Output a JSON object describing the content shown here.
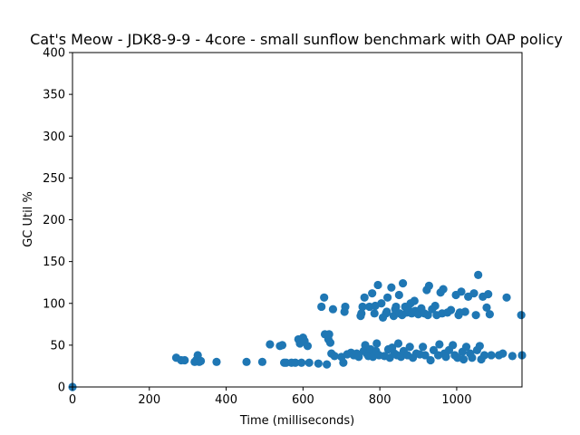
{
  "chart_data": {
    "type": "scatter",
    "title": "Cat's Meow - JDK8-9-9 - 4core -  small sunflow benchmark with OAP policy",
    "xlabel": "Time (milliseconds)",
    "ylabel": "GC Util %",
    "xlim": [
      0,
      1170
    ],
    "ylim": [
      0,
      400
    ],
    "xticks": [
      0,
      200,
      400,
      600,
      800,
      1000
    ],
    "yticks": [
      0,
      50,
      100,
      150,
      200,
      250,
      300,
      350,
      400
    ],
    "grid": false,
    "marker_color": "#1f77b4",
    "series": [
      {
        "points": [
          [
            0,
            0
          ],
          [
            270,
            35
          ],
          [
            283,
            32
          ],
          [
            292,
            32
          ],
          [
            318,
            30
          ],
          [
            322,
            32
          ],
          [
            326,
            38
          ],
          [
            330,
            30
          ],
          [
            334,
            31
          ],
          [
            375,
            30
          ],
          [
            453,
            30
          ],
          [
            494,
            30
          ],
          [
            514,
            51
          ],
          [
            540,
            49
          ],
          [
            546,
            50
          ],
          [
            551,
            29
          ],
          [
            556,
            29
          ],
          [
            570,
            29
          ],
          [
            580,
            29
          ],
          [
            588,
            57
          ],
          [
            592,
            52
          ],
          [
            596,
            29
          ],
          [
            600,
            59
          ],
          [
            604,
            55
          ],
          [
            612,
            49
          ],
          [
            616,
            29
          ],
          [
            640,
            28
          ],
          [
            648,
            96
          ],
          [
            655,
            107
          ],
          [
            657,
            63
          ],
          [
            662,
            27
          ],
          [
            666,
            57
          ],
          [
            668,
            63
          ],
          [
            671,
            53
          ],
          [
            674,
            40
          ],
          [
            678,
            93
          ],
          [
            682,
            37
          ],
          [
            700,
            36
          ],
          [
            705,
            29
          ],
          [
            708,
            90
          ],
          [
            710,
            96
          ],
          [
            715,
            39
          ],
          [
            725,
            41
          ],
          [
            732,
            38
          ],
          [
            740,
            40
          ],
          [
            745,
            36
          ],
          [
            750,
            85
          ],
          [
            752,
            88
          ],
          [
            755,
            96
          ],
          [
            758,
            43
          ],
          [
            760,
            107
          ],
          [
            762,
            50
          ],
          [
            766,
            40
          ],
          [
            770,
            37
          ],
          [
            773,
            96
          ],
          [
            776,
            45
          ],
          [
            780,
            112
          ],
          [
            782,
            36
          ],
          [
            786,
            88
          ],
          [
            788,
            97
          ],
          [
            790,
            43
          ],
          [
            792,
            52
          ],
          [
            795,
            122
          ],
          [
            798,
            38
          ],
          [
            804,
            100
          ],
          [
            808,
            83
          ],
          [
            812,
            37
          ],
          [
            816,
            88
          ],
          [
            818,
            90
          ],
          [
            820,
            107
          ],
          [
            822,
            45
          ],
          [
            826,
            35
          ],
          [
            830,
            119
          ],
          [
            832,
            47
          ],
          [
            836,
            85
          ],
          [
            838,
            40
          ],
          [
            840,
            93
          ],
          [
            842,
            96
          ],
          [
            845,
            38
          ],
          [
            848,
            52
          ],
          [
            850,
            110
          ],
          [
            852,
            88
          ],
          [
            855,
            36
          ],
          [
            858,
            86
          ],
          [
            860,
            124
          ],
          [
            862,
            43
          ],
          [
            866,
            96
          ],
          [
            870,
            89
          ],
          [
            872,
            38
          ],
          [
            875,
            92
          ],
          [
            878,
            48
          ],
          [
            880,
            100
          ],
          [
            883,
            88
          ],
          [
            886,
            35
          ],
          [
            890,
            103
          ],
          [
            892,
            91
          ],
          [
            895,
            40
          ],
          [
            900,
            87
          ],
          [
            904,
            39
          ],
          [
            908,
            94
          ],
          [
            912,
            48
          ],
          [
            916,
            88
          ],
          [
            918,
            38
          ],
          [
            922,
            116
          ],
          [
            925,
            86
          ],
          [
            928,
            121
          ],
          [
            932,
            32
          ],
          [
            936,
            93
          ],
          [
            940,
            44
          ],
          [
            944,
            97
          ],
          [
            948,
            86
          ],
          [
            952,
            38
          ],
          [
            955,
            51
          ],
          [
            958,
            113
          ],
          [
            962,
            88
          ],
          [
            965,
            117
          ],
          [
            968,
            40
          ],
          [
            972,
            36
          ],
          [
            976,
            89
          ],
          [
            980,
            44
          ],
          [
            985,
            92
          ],
          [
            990,
            50
          ],
          [
            995,
            38
          ],
          [
            998,
            110
          ],
          [
            1002,
            35
          ],
          [
            1005,
            86
          ],
          [
            1008,
            89
          ],
          [
            1012,
            114
          ],
          [
            1015,
            42
          ],
          [
            1018,
            33
          ],
          [
            1022,
            90
          ],
          [
            1025,
            48
          ],
          [
            1030,
            108
          ],
          [
            1035,
            40
          ],
          [
            1040,
            35
          ],
          [
            1045,
            112
          ],
          [
            1050,
            86
          ],
          [
            1053,
            44
          ],
          [
            1056,
            134
          ],
          [
            1060,
            49
          ],
          [
            1064,
            33
          ],
          [
            1068,
            108
          ],
          [
            1072,
            38
          ],
          [
            1078,
            95
          ],
          [
            1082,
            111
          ],
          [
            1086,
            87
          ],
          [
            1090,
            38
          ],
          [
            1110,
            38
          ],
          [
            1120,
            40
          ],
          [
            1130,
            107
          ],
          [
            1145,
            37
          ],
          [
            1168,
            86
          ],
          [
            1170,
            38
          ]
        ]
      }
    ]
  }
}
